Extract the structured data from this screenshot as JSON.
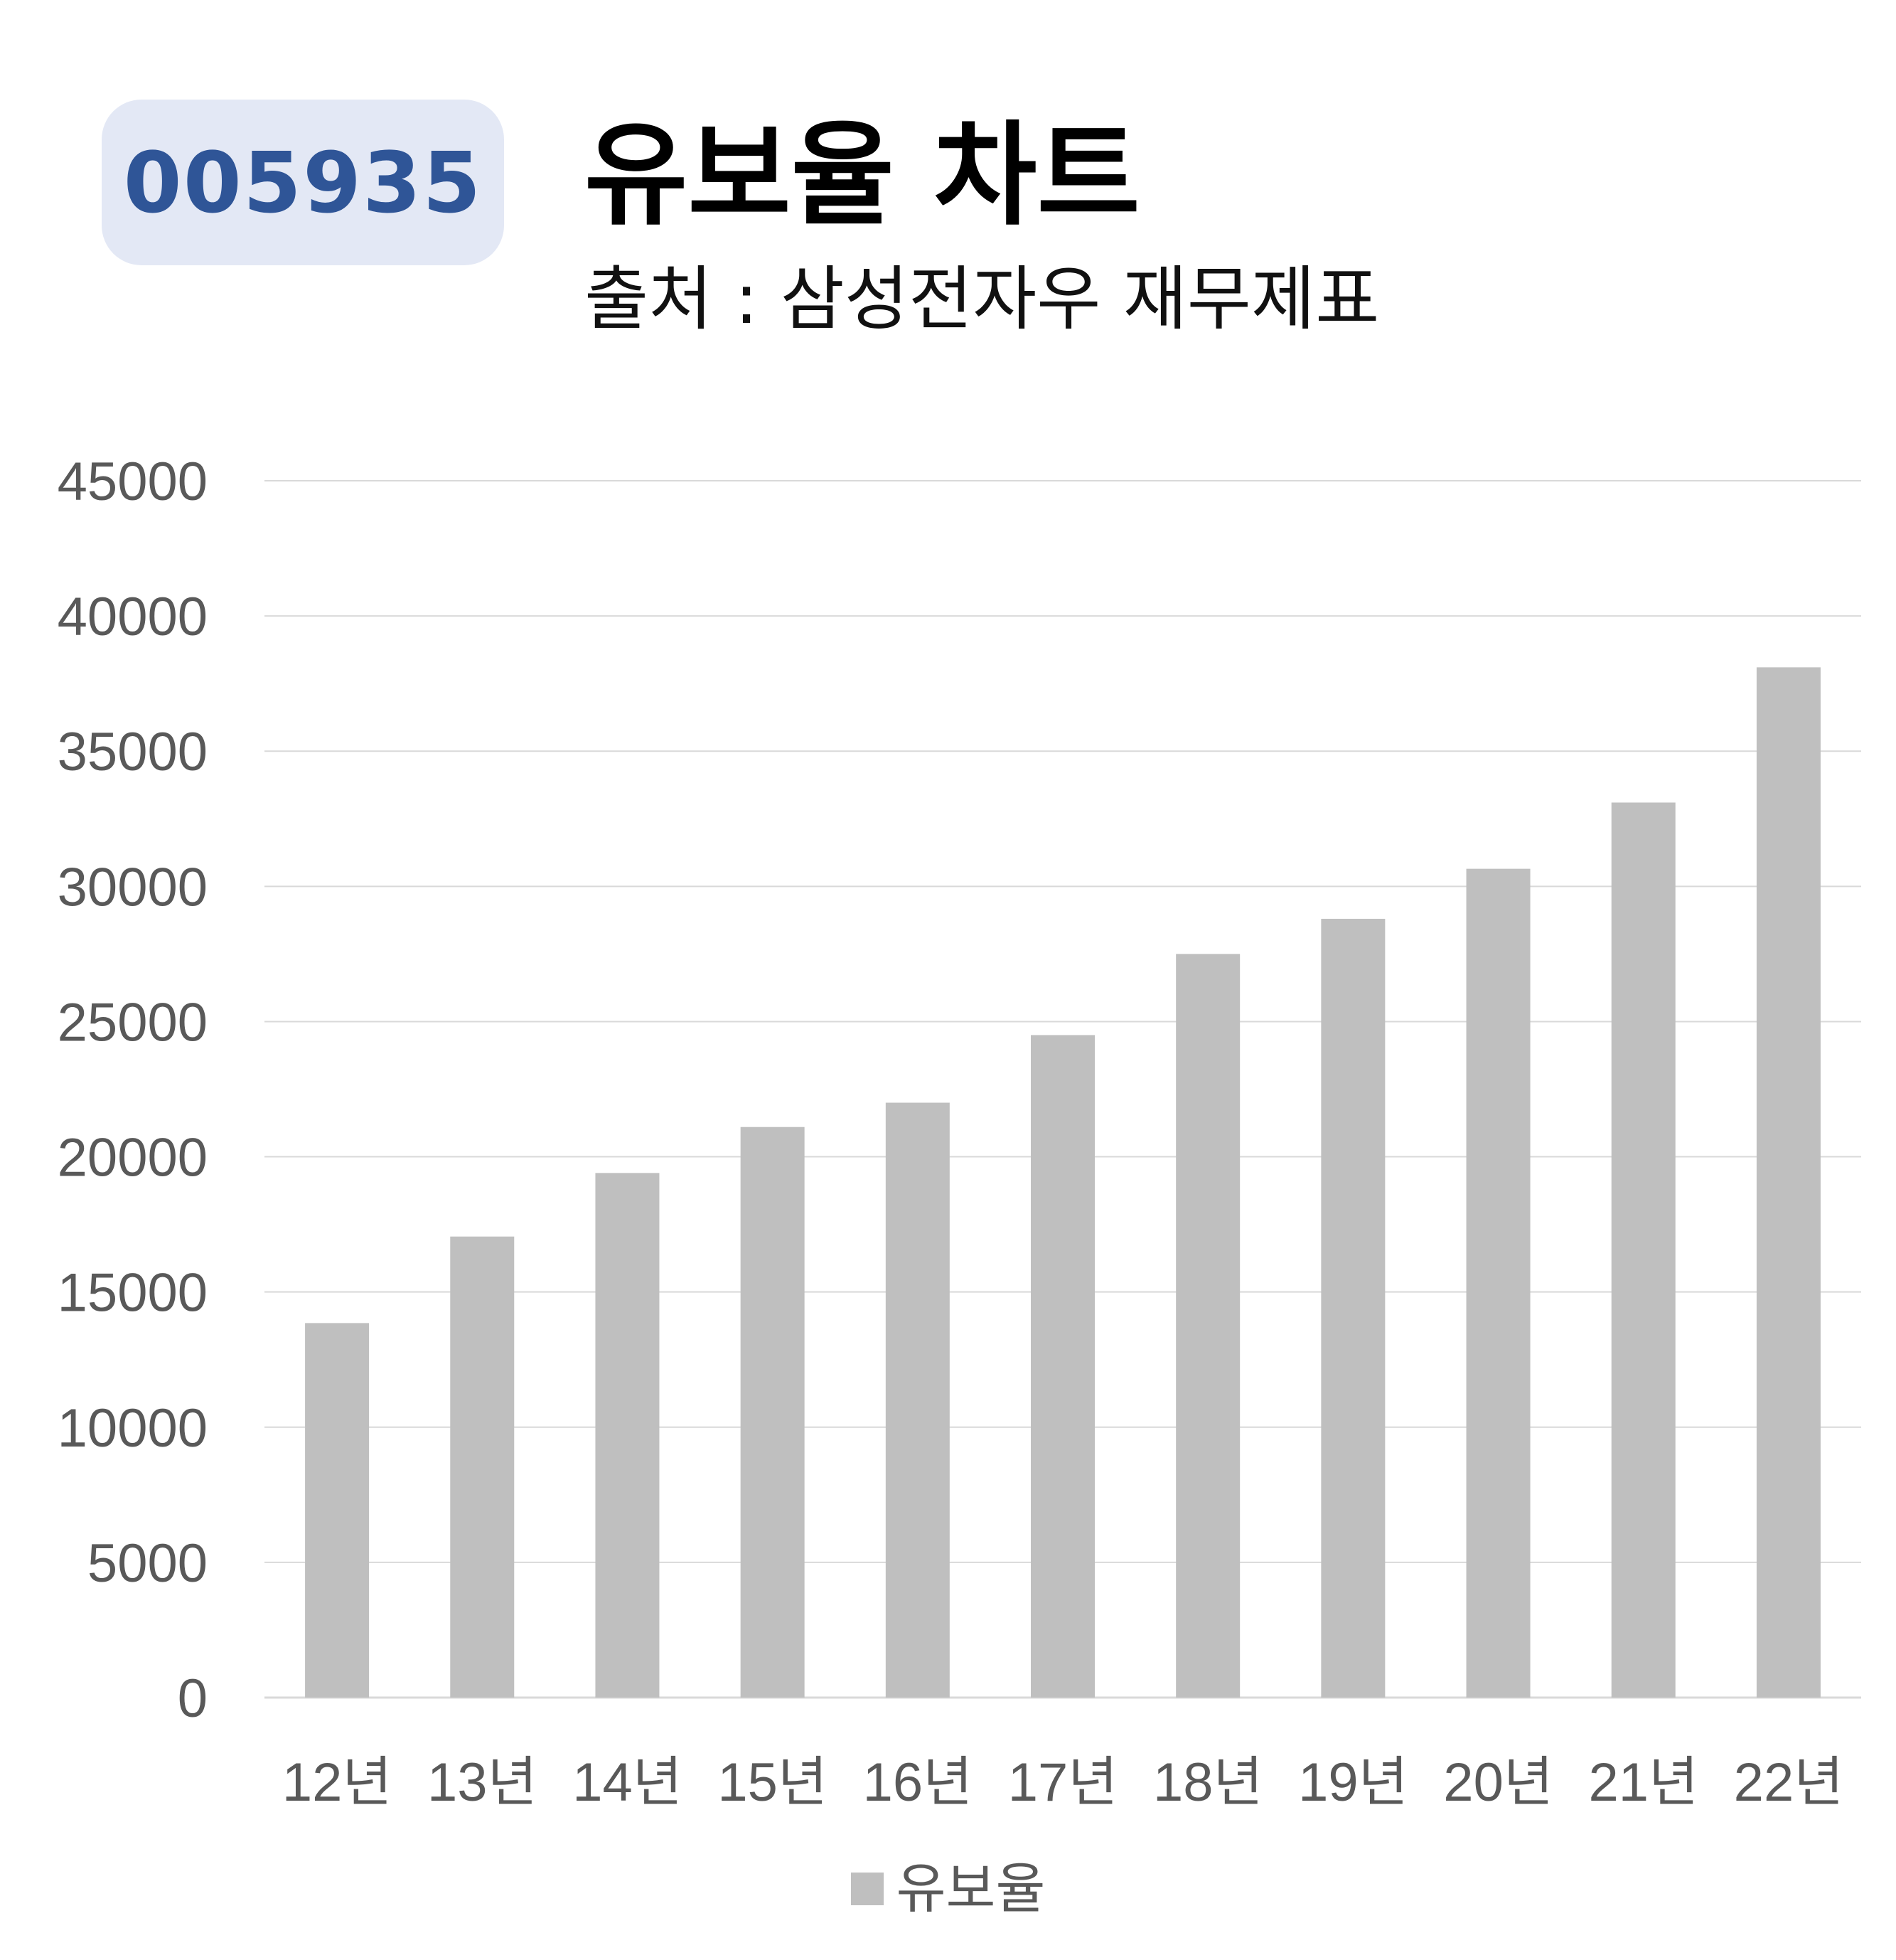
{
  "header": {
    "code": "005935",
    "title": "유보율 차트",
    "source": "출처 : 삼성전자우 재무제표"
  },
  "chart_data": {
    "type": "bar",
    "categories": [
      "12년",
      "13년",
      "14년",
      "15년",
      "16년",
      "17년",
      "18년",
      "19년",
      "20년",
      "21년",
      "22년"
    ],
    "series": [
      {
        "name": "유보율",
        "values": [
          13850,
          17050,
          19400,
          21100,
          22000,
          24500,
          27500,
          28800,
          30650,
          33100,
          38100
        ]
      }
    ],
    "ylim": [
      0,
      45000
    ],
    "yticks": [
      0,
      5000,
      10000,
      15000,
      20000,
      25000,
      30000,
      35000,
      40000,
      45000
    ],
    "grid": true,
    "legend": "bottom",
    "colors": {
      "bar": "#bfbfbf",
      "grid": "#d9d9d9",
      "axis": "#d9d9d9",
      "tick": "#595959",
      "badge_bg": "#e3e8f5",
      "badge_text": "#2f5597"
    }
  }
}
